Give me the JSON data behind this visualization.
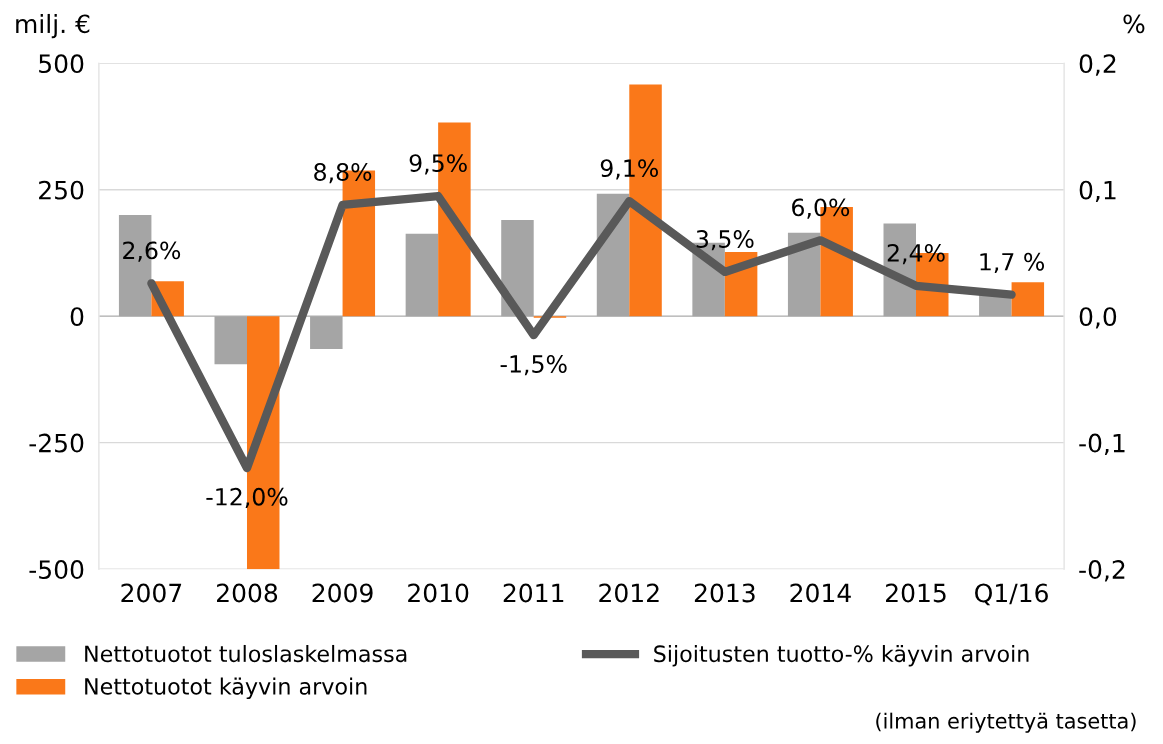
{
  "chart_data": {
    "type": "bar",
    "categories": [
      "2007",
      "2008",
      "2009",
      "2010",
      "2011",
      "2012",
      "2013",
      "2014",
      "2015",
      "Q1/16"
    ],
    "ylabel": "milj. €",
    "y2label": "%",
    "series": [
      {
        "name": "Nettotuotot tuloslaskelmassa",
        "color": "#a5a5a5",
        "values": [
          200,
          -95,
          -65,
          163,
          190,
          242,
          145,
          165,
          183,
          42
        ]
      },
      {
        "name": "Nettotuotot käyvin arvoin",
        "color": "#fa7819",
        "values": [
          69,
          -500,
          288,
          383,
          -3,
          458,
          127,
          216,
          125,
          67
        ]
      },
      {
        "name": "Sijoitusten tuotto-% käyvin arvoin",
        "type": "line",
        "axis": "y2",
        "color": "#595959",
        "values": [
          0.026,
          -0.12,
          0.088,
          0.095,
          -0.015,
          0.091,
          0.035,
          0.06,
          0.024,
          0.017
        ],
        "value_labels": [
          "2,6%",
          "-12,0%",
          "8,8%",
          "9,5%",
          "-1,5%",
          "9,1%",
          "3,5%",
          "6,0%",
          "2,4%",
          "1,7 %"
        ]
      }
    ],
    "ylim": [
      -500,
      500
    ],
    "yticks": [
      {
        "value": -500,
        "label": "-500"
      },
      {
        "value": -250,
        "label": "-250"
      },
      0,
      250,
      500
    ],
    "y2lim": [
      -0.2,
      0.2
    ],
    "y2ticks": [
      {
        "value": -0.2,
        "label": "-0,2"
      },
      {
        "value": -0.1,
        "label": "-0,1"
      },
      {
        "value": 0,
        "label": "0,0"
      },
      {
        "value": 0.1,
        "label": "0,1"
      },
      {
        "value": 0.2,
        "label": "0,2"
      }
    ],
    "grid": "y",
    "legend": "bottom",
    "marker": "none",
    "line_style": "solid",
    "annotations": [
      "(ilman eriytettyä tasetta)"
    ]
  }
}
